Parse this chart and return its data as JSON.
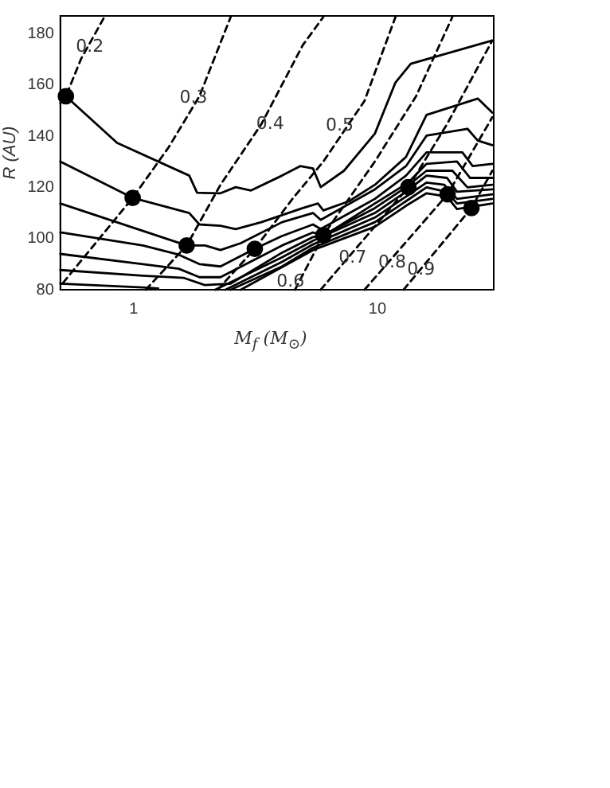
{
  "chart_data": {
    "type": "line",
    "xlabel": "M$_{f}$ (M$_{⊙}$)",
    "ylabel": "R (AU)",
    "log": "x",
    "xlim": [
      0.5,
      30
    ],
    "xticks": [
      1,
      10
    ],
    "ylim": [
      80,
      187
    ],
    "yticks": [
      80,
      100,
      120,
      140,
      160,
      180
    ],
    "grid": false,
    "series": [
      {
        "color": "#000000",
        "line_style": "solid",
        "x": [
          0.5,
          0.527,
          0.855,
          1.69,
          1.82,
          2.27,
          2.62,
          3.03,
          4.06,
          4.82,
          5.44,
          5.85,
          7.29,
          9.76,
          11.86,
          13.7,
          29.6
        ],
        "values": [
          155.6,
          155.6,
          137.4,
          124.6,
          117.9,
          117.7,
          120.1,
          118.8,
          124.6,
          128.3,
          127.4,
          120.1,
          126.5,
          141,
          161,
          168.3,
          177.4
        ]
      },
      {
        "color": "#000000",
        "line_style": "solid",
        "x": [
          0.5,
          0.99,
          1.69,
          1.86,
          2.27,
          2.62,
          3.34,
          4.94,
          5.7,
          6.0,
          7.65,
          9.76,
          13.1,
          15.9,
          25.8,
          29.6
        ],
        "values": [
          130.1,
          115.9,
          110,
          105.5,
          105,
          103.7,
          106.4,
          111.9,
          113.7,
          111,
          114.6,
          121,
          131.9,
          148.3,
          154.7,
          149.2
        ]
      },
      {
        "color": "#000000",
        "line_style": "solid",
        "x": [
          0.5,
          1.65,
          1.96,
          2.27,
          2.75,
          4.06,
          5.44,
          5.85,
          9.76,
          13.1,
          15.9,
          23.4,
          25.8,
          29.6
        ],
        "values": [
          113.7,
          97.3,
          97.3,
          95.5,
          98.2,
          106.4,
          110,
          107.3,
          119.2,
          128.3,
          140.2,
          142.9,
          138.3,
          136.5
        ]
      },
      {
        "color": "#000000",
        "line_style": "solid",
        "x": [
          0.5,
          1.09,
          1.53,
          1.86,
          2.27,
          3.14,
          4.06,
          5.44,
          5.85,
          9.76,
          13.1,
          15.9,
          22.3,
          24.6,
          29.6
        ],
        "values": [
          102.4,
          97.3,
          93.7,
          90,
          89.1,
          96,
          101,
          105.5,
          103.7,
          115.5,
          124.6,
          133.7,
          133.7,
          128.3,
          129.2
        ]
      },
      {
        "color": "#000000",
        "line_style": "solid",
        "x": [
          0.5,
          1.09,
          1.53,
          1.86,
          2.27,
          4.06,
          5.44,
          6.0,
          9.76,
          13.4,
          15.9,
          21.2,
          24,
          29.6
        ],
        "values": [
          94,
          90,
          88.2,
          84.9,
          84.9,
          97.3,
          102.4,
          101,
          113.7,
          121.9,
          129.2,
          130.1,
          123.7,
          123.7
        ]
      },
      {
        "color": "#000000",
        "line_style": "solid",
        "x": [
          0.5,
          1.09,
          1.61,
          1.96,
          2.5,
          4.06,
          5.44,
          6.0,
          9.76,
          13.1,
          15.9,
          20.3,
          23.4,
          29.6
        ],
        "values": [
          87.7,
          85.5,
          84.6,
          81.8,
          82.4,
          94.5,
          100.6,
          101.3,
          111.9,
          120.1,
          126.5,
          126.5,
          120,
          121
        ]
      },
      {
        "color": "#000000",
        "line_style": "solid",
        "x": [
          0.5,
          1.09,
          1.26,
          1.7,
          2.16,
          4.06,
          5.44,
          9.76,
          13.1,
          15.9,
          19.3,
          21.2,
          29.6
        ],
        "values": [
          82.4,
          80.9,
          80.5,
          null,
          80,
          92.7,
          99.1,
          110,
          118.3,
          124.6,
          123.7,
          118.3,
          119.2
        ]
      },
      {
        "color": "#000000",
        "line_style": "solid",
        "x": [
          2.38,
          4.06,
          5.44,
          9.76,
          13.1,
          15.9,
          18.8,
          21.2,
          29.6
        ],
        "values": [
          80,
          90.9,
          97.7,
          108.2,
          116.4,
          121.9,
          121,
          115.5,
          117.3
        ]
      },
      {
        "color": "#000000",
        "line_style": "solid",
        "x": [
          2.5,
          4.06,
          5.44,
          9.76,
          13.1,
          15.9,
          19.3,
          21.2,
          29.6
        ],
        "values": [
          80,
          89.1,
          96.4,
          106.4,
          114.6,
          120,
          118.2,
          113.7,
          115.5
        ]
      },
      {
        "color": "#000000",
        "line_style": "solid",
        "x": [
          2.75,
          5.44,
          9.76,
          13.1,
          15.9,
          19.3,
          21.2,
          29.6
        ],
        "values": [
          80,
          95.5,
          104.6,
          112.8,
          117.7,
          116.4,
          111.5,
          113.7
        ]
      },
      {
        "color": "#000000",
        "line_style": "dashed",
        "x": [
          0.5,
          0.527,
          0.608,
          0.758
        ],
        "values": [
          152.9,
          155.6,
          170.2,
          186.6
        ]
      },
      {
        "color": "#000000",
        "line_style": "dashed",
        "x": [
          0.513,
          0.99,
          1.39,
          1.86,
          2.5
        ],
        "values": [
          82.7,
          115.9,
          135.6,
          155.6,
          186.6
        ]
      },
      {
        "color": "#000000",
        "line_style": "dashed",
        "x": [
          1.12,
          1.65,
          2.27,
          3.34,
          4.94,
          6.0
        ],
        "values": [
          80,
          97.3,
          121,
          144.7,
          175.6,
          186.6
        ]
      },
      {
        "color": "#000000",
        "line_style": "dashed",
        "x": [
          2.21,
          3.14,
          4.48,
          6.0,
          8.85,
          11.86
        ],
        "values": [
          80,
          96,
          115.5,
          130.1,
          153.8,
          186.6
        ]
      },
      {
        "color": "#000000",
        "line_style": "dashed",
        "x": [
          4.59,
          6.0,
          9.76,
          14.4,
          20.3
        ],
        "values": [
          80,
          101.3,
          130.1,
          155.6,
          186.6
        ]
      },
      {
        "color": "#000000",
        "line_style": "dashed",
        "x": [
          5.85,
          13.4,
          19.3,
          29.6
        ],
        "values": [
          80,
          120.1,
          144.7,
          177.4
        ]
      },
      {
        "color": "#000000",
        "line_style": "dashed",
        "x": [
          8.85,
          19.4,
          29.6
        ],
        "values": [
          80,
          117.3,
          147.4
        ]
      },
      {
        "color": "#000000",
        "line_style": "dashed",
        "x": [
          12.8,
          24.3,
          29.6
        ],
        "values": [
          80,
          111.9,
          126.5
        ]
      },
      {
        "type": "scatter",
        "marker": "circle",
        "color": "#000000",
        "x": [
          0.527,
          0.99,
          1.65,
          3.14,
          6.0,
          13.4,
          19.4,
          24.3
        ],
        "values": [
          155.6,
          115.9,
          97.3,
          96,
          101.3,
          120.1,
          117.3,
          111.9
        ]
      }
    ],
    "annotations": [
      {
        "text": "0.2",
        "x": 0.66,
        "y": 174.7
      },
      {
        "text": "0.3",
        "x": 1.76,
        "y": 155
      },
      {
        "text": "0.4",
        "x": 3.63,
        "y": 144.7
      },
      {
        "text": "0.5",
        "x": 7.0,
        "y": 144.1
      },
      {
        "text": "0.6",
        "x": 4.4,
        "y": 83
      },
      {
        "text": "0.7",
        "x": 7.9,
        "y": 92.2
      },
      {
        "text": "0.8",
        "x": 11.5,
        "y": 90.6
      },
      {
        "text": "0.9",
        "x": 15.1,
        "y": 87.8
      }
    ]
  }
}
